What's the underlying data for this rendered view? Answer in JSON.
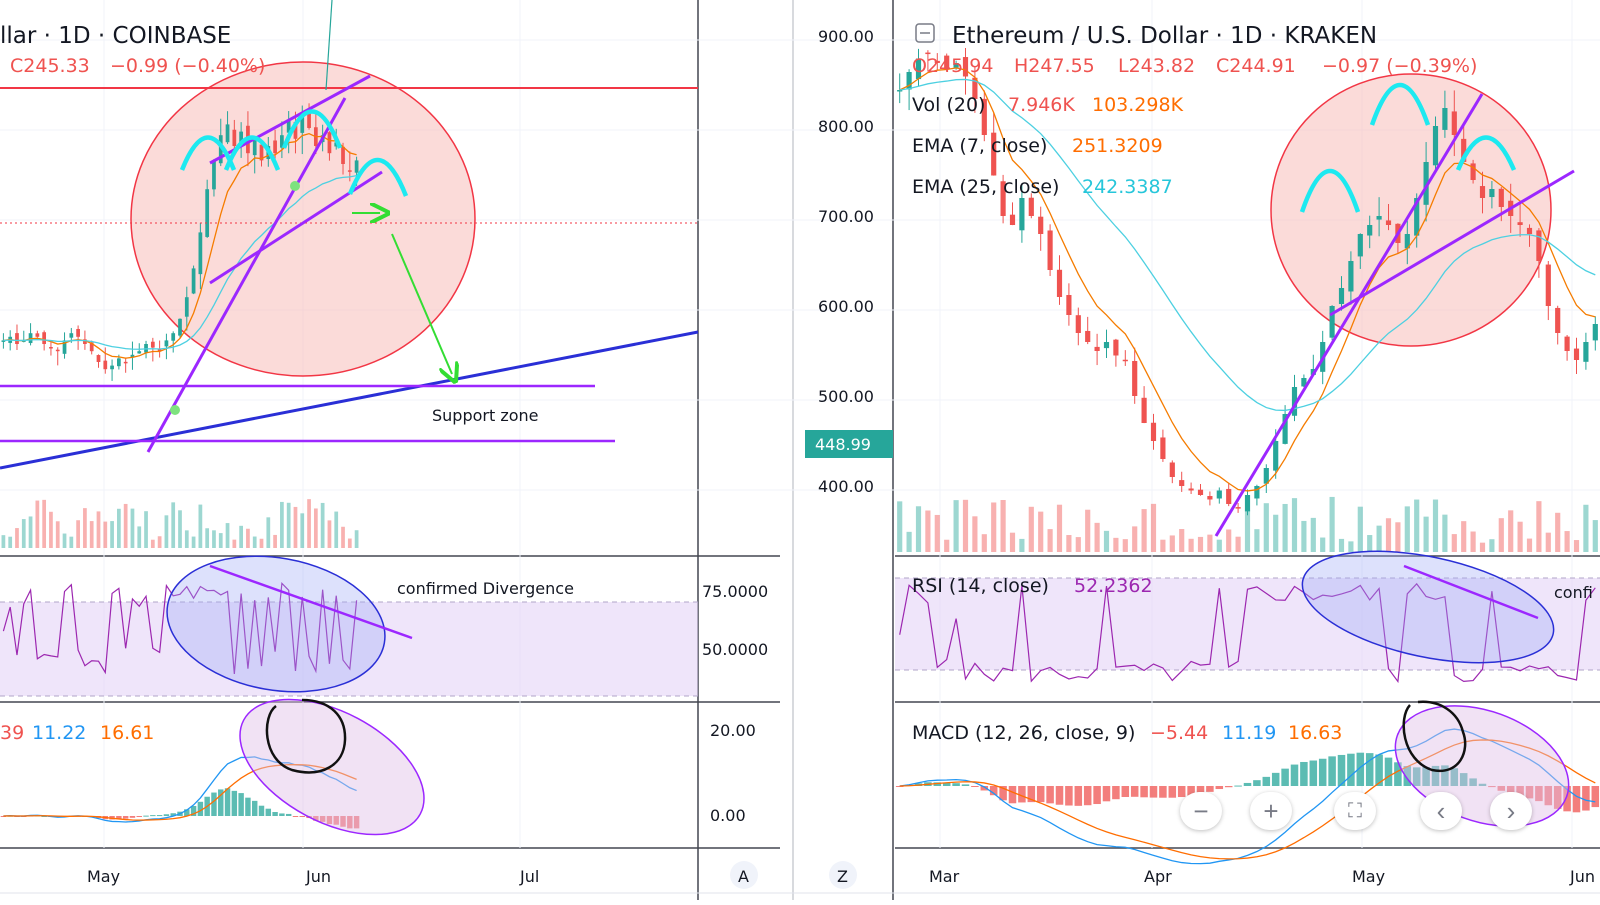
{
  "colors": {
    "up": "#26a69a",
    "down": "#ef5350",
    "ema_fast": "#f57c00",
    "ema_slow": "#4dd0e1",
    "rsi": "#9c27b0",
    "macd": "#2196f3",
    "signal": "#ff6d00",
    "purple_line": "#9c27ff",
    "blue_line": "#2a2fd6",
    "red_line": "#f23645",
    "arrow": "#33dd33",
    "arc": "#1de9f0",
    "circle_fill": "#f7b7b3",
    "rsi_band": "#e1d0f5",
    "price_tag": "#26a69a"
  },
  "left_chart": {
    "header": {
      "symbol": "llar · 1D · COINBASE",
      "ohlc_close": "C245.33",
      "change": "−0.99 (−0.40%)"
    },
    "x_ticks": [
      "May",
      "Jun",
      "Jul"
    ],
    "corner_label": "A",
    "rsi_ticks": [
      "75.0000",
      "50.0000"
    ],
    "macd_ticks": [
      "20.00",
      "0.00"
    ],
    "macd_legend": {
      "v1": "39",
      "v2": "11.22",
      "v3": "16.61"
    },
    "annotations": {
      "support_zone": "Support zone",
      "divergence": "confirmed Divergence"
    },
    "chart_data": {
      "type": "line",
      "title": "",
      "xlabel": "",
      "ylabel": "",
      "note_ohlc": "last close 245.33",
      "series": [
        {
          "values": [
            0.36,
            0.37,
            0.35,
            0.36,
            0.38,
            0.37,
            0.35,
            0.34,
            0.33,
            0.36,
            0.38,
            0.37,
            0.35,
            0.33,
            0.3,
            0.28,
            0.29,
            0.31,
            0.3,
            0.32,
            0.33,
            0.35,
            0.34,
            0.33,
            0.36,
            0.38,
            0.42,
            0.48,
            0.56,
            0.66,
            0.78,
            0.86,
            0.93,
            0.96,
            0.9,
            0.94,
            0.88,
            0.92,
            0.86,
            0.9,
            0.88,
            0.93,
            0.97,
            0.92,
            0.98,
            0.95,
            0.9,
            0.93,
            0.88,
            0.91,
            0.85,
            0.83,
            0.86
          ]
        }
      ]
    }
  },
  "right_chart": {
    "header": {
      "symbol": "Ethereum / U.S. Dollar · 1D · KRAKEN",
      "open": "O245.94",
      "high": "H247.55",
      "low": "L243.82",
      "close": "C244.91",
      "change": "−0.97 (−0.39%)"
    },
    "vol_legend": {
      "label": "Vol (20)",
      "v1": "7.946K",
      "v2": "103.298K"
    },
    "ema7_legend": {
      "label": "EMA (7, close)",
      "value": "251.3209"
    },
    "ema25_legend": {
      "label": "EMA (25, close)",
      "value": "242.3387"
    },
    "rsi_legend": {
      "label": "RSI (14, close)",
      "value": "52.2362"
    },
    "macd_legend": {
      "label": "MACD (12, 26, close, 9)",
      "v1": "−5.44",
      "v2": "11.19",
      "v3": "16.63"
    },
    "price_tag": "448.99",
    "annotation_right": "confi",
    "y_ticks": [
      "900.00",
      "800.00",
      "700.00",
      "600.00",
      "500.00",
      "400.00"
    ],
    "x_ticks": [
      "Mar",
      "Apr",
      "May",
      "Jun"
    ],
    "corner_label": "Z",
    "chart_data": {
      "type": "line",
      "title": "",
      "xlabel": "",
      "ylabel": "",
      "y_range": [
        340,
        940
      ],
      "series": [
        {
          "values": [
            840,
            860,
            875,
            880,
            870,
            865,
            870,
            855,
            830,
            790,
            745,
            700,
            690,
            720,
            700,
            680,
            640,
            610,
            590,
            570,
            560,
            550,
            560,
            545,
            540,
            500,
            470,
            450,
            430,
            410,
            400,
            395,
            390,
            385,
            395,
            380,
            375,
            390,
            400,
            420,
            450,
            480,
            510,
            520,
            530,
            560,
            600,
            620,
            650,
            680,
            690,
            700,
            690,
            670,
            680,
            720,
            760,
            800,
            820,
            790,
            760,
            740,
            720,
            730,
            710,
            700,
            690,
            680,
            650,
            600,
            570,
            550,
            540,
            560,
            580
          ]
        }
      ]
    }
  }
}
